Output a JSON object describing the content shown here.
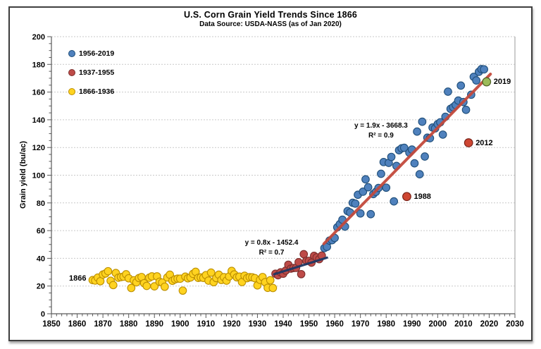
{
  "title": "U.S. Corn Grain Yield Trends Since 1866",
  "subtitle": "Data Source: USDA-NASS (as of Jan 2020)",
  "chart_data": {
    "type": "scatter",
    "title": "U.S. Corn Grain Yield Trends Since 1866",
    "subtitle": "Data Source: USDA-NASS (as of Jan 2020)",
    "xlabel": "",
    "ylabel": "Grain yield (bu/ac)",
    "xlim": [
      1850,
      2030
    ],
    "ylim": [
      0,
      200
    ],
    "x_ticks": [
      1850,
      1860,
      1870,
      1880,
      1890,
      1900,
      1910,
      1920,
      1930,
      1940,
      1950,
      1960,
      1970,
      1980,
      1990,
      2000,
      2010,
      2020,
      2030
    ],
    "y_ticks": [
      0,
      20,
      40,
      60,
      80,
      100,
      120,
      140,
      160,
      180,
      200
    ],
    "grid": "horizontal dashed",
    "legend_position": "top-left inside plot",
    "series": [
      {
        "name": "1956-2019",
        "color": "#4F81BD",
        "stroke": "#1F4E79",
        "points": [
          [
            1956,
            47.4
          ],
          [
            1957,
            48.3
          ],
          [
            1958,
            52.8
          ],
          [
            1959,
            53.1
          ],
          [
            1960,
            54.7
          ],
          [
            1961,
            62.4
          ],
          [
            1962,
            64.7
          ],
          [
            1963,
            67.9
          ],
          [
            1964,
            62.9
          ],
          [
            1965,
            74.1
          ],
          [
            1966,
            73.1
          ],
          [
            1967,
            80.1
          ],
          [
            1968,
            79.5
          ],
          [
            1969,
            85.9
          ],
          [
            1970,
            72.4
          ],
          [
            1971,
            88.1
          ],
          [
            1972,
            97
          ],
          [
            1973,
            91.3
          ],
          [
            1974,
            71.9
          ],
          [
            1975,
            86.4
          ],
          [
            1976,
            88
          ],
          [
            1977,
            90.8
          ],
          [
            1978,
            101
          ],
          [
            1979,
            109.5
          ],
          [
            1980,
            91
          ],
          [
            1981,
            108.9
          ],
          [
            1982,
            113.2
          ],
          [
            1983,
            81.1
          ],
          [
            1984,
            106.7
          ],
          [
            1985,
            118
          ],
          [
            1986,
            119.4
          ],
          [
            1987,
            119.8
          ],
          [
            1989,
            116.3
          ],
          [
            1990,
            118.5
          ],
          [
            1991,
            108.6
          ],
          [
            1992,
            131.5
          ],
          [
            1993,
            100.7
          ],
          [
            1994,
            138.6
          ],
          [
            1995,
            113.5
          ],
          [
            1996,
            127.1
          ],
          [
            1997,
            126.7
          ],
          [
            1998,
            134.4
          ],
          [
            1999,
            133.8
          ],
          [
            2000,
            136.9
          ],
          [
            2001,
            138.2
          ],
          [
            2002,
            129.3
          ],
          [
            2003,
            142.2
          ],
          [
            2004,
            160.3
          ],
          [
            2005,
            147.9
          ],
          [
            2006,
            149.1
          ],
          [
            2007,
            150.7
          ],
          [
            2008,
            153.9
          ],
          [
            2009,
            164.7
          ],
          [
            2010,
            152.8
          ],
          [
            2011,
            147.2
          ],
          [
            2013,
            158.1
          ],
          [
            2014,
            171
          ],
          [
            2015,
            168.4
          ],
          [
            2016,
            174.6
          ],
          [
            2017,
            176.6
          ],
          [
            2018,
            176.4
          ]
        ]
      },
      {
        "name": "1937-1955",
        "color": "#BE4B48",
        "stroke": "#7B2F2D",
        "points": [
          [
            1937,
            28.9
          ],
          [
            1938,
            27.8
          ],
          [
            1939,
            29.9
          ],
          [
            1940,
            28.9
          ],
          [
            1941,
            31.2
          ],
          [
            1942,
            35.4
          ],
          [
            1943,
            32.6
          ],
          [
            1944,
            33
          ],
          [
            1945,
            33.1
          ],
          [
            1946,
            37.2
          ],
          [
            1947,
            28.6
          ],
          [
            1948,
            43
          ],
          [
            1949,
            38.2
          ],
          [
            1950,
            38.2
          ],
          [
            1951,
            36.9
          ],
          [
            1952,
            41.8
          ],
          [
            1953,
            40.7
          ],
          [
            1954,
            39.4
          ],
          [
            1955,
            42
          ]
        ]
      },
      {
        "name": "1866-1936",
        "color": "#FFD320",
        "stroke": "#BC8F00",
        "points": [
          [
            1866,
            24.3
          ],
          [
            1867,
            24
          ],
          [
            1868,
            26.1
          ],
          [
            1869,
            23.5
          ],
          [
            1870,
            28.3
          ],
          [
            1871,
            29.1
          ],
          [
            1872,
            30.7
          ],
          [
            1873,
            23.8
          ],
          [
            1874,
            20.7
          ],
          [
            1875,
            29.4
          ],
          [
            1876,
            26
          ],
          [
            1877,
            26.5
          ],
          [
            1878,
            26.8
          ],
          [
            1879,
            28.5
          ],
          [
            1880,
            25.6
          ],
          [
            1881,
            18.6
          ],
          [
            1882,
            24.1
          ],
          [
            1883,
            22.7
          ],
          [
            1884,
            25.8
          ],
          [
            1885,
            26.5
          ],
          [
            1886,
            22
          ],
          [
            1887,
            20.1
          ],
          [
            1888,
            26
          ],
          [
            1889,
            27
          ],
          [
            1890,
            19.8
          ],
          [
            1891,
            27
          ],
          [
            1892,
            23.1
          ],
          [
            1893,
            22.5
          ],
          [
            1894,
            19.5
          ],
          [
            1895,
            26.2
          ],
          [
            1896,
            28.2
          ],
          [
            1897,
            23.8
          ],
          [
            1898,
            24.8
          ],
          [
            1899,
            25.3
          ],
          [
            1900,
            25.3
          ],
          [
            1901,
            16.7
          ],
          [
            1902,
            26.8
          ],
          [
            1903,
            25.6
          ],
          [
            1904,
            26.2
          ],
          [
            1905,
            28.8
          ],
          [
            1906,
            30.3
          ],
          [
            1907,
            25.9
          ],
          [
            1908,
            26.2
          ],
          [
            1909,
            25.9
          ],
          [
            1910,
            27.9
          ],
          [
            1911,
            23.9
          ],
          [
            1912,
            29.7
          ],
          [
            1913,
            22.8
          ],
          [
            1914,
            25.8
          ],
          [
            1915,
            28.2
          ],
          [
            1916,
            24.4
          ],
          [
            1917,
            26.4
          ],
          [
            1918,
            23.9
          ],
          [
            1919,
            26.9
          ],
          [
            1920,
            30.9
          ],
          [
            1921,
            28.4
          ],
          [
            1922,
            26.3
          ],
          [
            1923,
            26.8
          ],
          [
            1924,
            22.9
          ],
          [
            1925,
            27.4
          ],
          [
            1926,
            25.7
          ],
          [
            1927,
            26.4
          ],
          [
            1928,
            26.3
          ],
          [
            1929,
            25.7
          ],
          [
            1930,
            20.5
          ],
          [
            1931,
            24.5
          ],
          [
            1932,
            26.5
          ],
          [
            1933,
            22.8
          ],
          [
            1934,
            18.7
          ],
          [
            1935,
            24.2
          ],
          [
            1936,
            18.6
          ]
        ]
      }
    ],
    "highlights": [
      {
        "label": "1988",
        "year": 1988,
        "value": 84.6,
        "color": "#CE4632",
        "stroke": "#7A241A"
      },
      {
        "label": "2012",
        "year": 2012,
        "value": 123.4,
        "color": "#CE4632",
        "stroke": "#7A241A"
      },
      {
        "label": "2019",
        "year": 2019,
        "value": 167.4,
        "color": "#9BBB59",
        "stroke": "#4F6228"
      }
    ],
    "trendlines": [
      {
        "equation": "y = 0.8x - 1452.4",
        "r2": "R² = 0.7",
        "color": "#1F3864",
        "width": 3.2,
        "x1": 1936.5,
        "y1": 28.5,
        "x2": 1957,
        "y2": 40.5,
        "label_x": 1935.5,
        "label_y": 47.5
      },
      {
        "equation": "y = 1.9x - 3668.3",
        "r2": "R² = 0.9",
        "color": "#C34A3D",
        "width": 4,
        "x1": 1955.8,
        "y1": 50.5,
        "x2": 2020.5,
        "y2": 173,
        "label_x": 1978,
        "label_y": 132
      }
    ],
    "annotations": [
      {
        "text": "1866",
        "year": 1866,
        "value": 25.2,
        "position": "left-of-first-point"
      }
    ]
  }
}
